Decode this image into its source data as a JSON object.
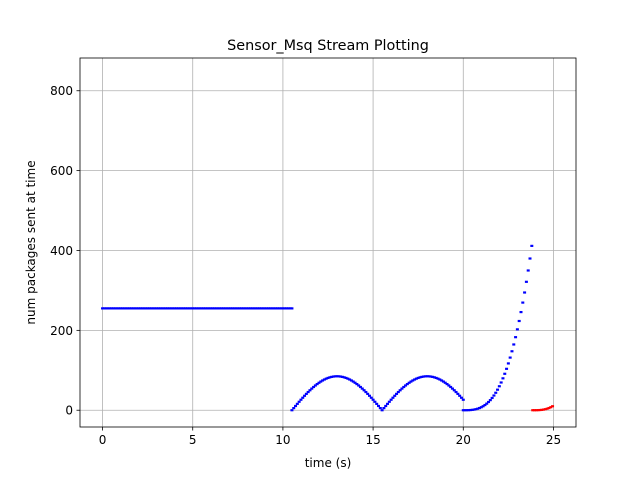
{
  "chart_data": {
    "type": "scatter",
    "title": "Sensor_Msq Stream Plotting",
    "xlabel": "time (s)",
    "ylabel": "num packages sent at time",
    "xlim": [
      -1.25,
      26.25
    ],
    "ylim": [
      -42,
      882
    ],
    "xticks": [
      0,
      5,
      10,
      15,
      20,
      25
    ],
    "yticks": [
      0,
      200,
      400,
      600,
      800
    ],
    "grid": true,
    "colors": {
      "series_blue": "#0000ff",
      "series_red": "#ff0000",
      "grid": "#b0b0b0",
      "axes": "#000000"
    },
    "series": [
      {
        "color": "#0000ff",
        "marker": "small-dash",
        "segments": [
          {
            "shape": "constant",
            "x_start": 0,
            "x_end": 10.5,
            "step": 0.1,
            "y": 255
          },
          {
            "shape": "abs-sine",
            "x_start": 10.5,
            "x_end": 20,
            "step": 0.1,
            "amplitude": 85,
            "period": 5
          },
          {
            "shape": "cubic",
            "x_start": 20,
            "x_end": 23.8,
            "step": 0.1,
            "coefficient": 7.5
          }
        ]
      },
      {
        "color": "#ff0000",
        "marker": "small-dash",
        "segments": [
          {
            "shape": "cubic",
            "x_start": 23.85,
            "x_end": 24.95,
            "step": 0.1,
            "coefficient": 7.5
          }
        ]
      }
    ]
  }
}
